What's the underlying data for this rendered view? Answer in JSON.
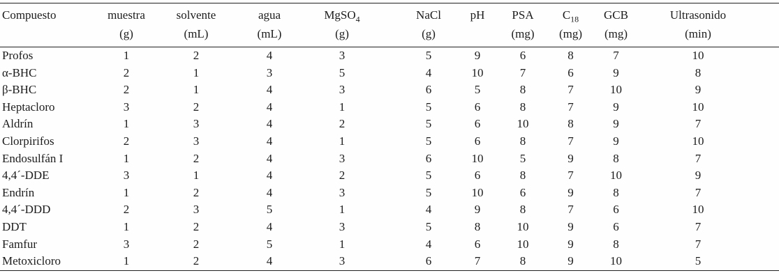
{
  "table": {
    "columns": [
      {
        "main": "Compuesto",
        "sub": "",
        "unit": ""
      },
      {
        "main": "muestra",
        "sub": "",
        "unit": "(g)"
      },
      {
        "main": "solvente",
        "sub": "",
        "unit": "(mL)"
      },
      {
        "main": "agua",
        "sub": "",
        "unit": "(mL)"
      },
      {
        "main": "MgSO",
        "sub": "4",
        "unit": "(g)"
      },
      {
        "main": "NaCl",
        "sub": "",
        "unit": "(g)"
      },
      {
        "main": "pH",
        "sub": "",
        "unit": ""
      },
      {
        "main": "PSA",
        "sub": "",
        "unit": "(mg)"
      },
      {
        "main": "C",
        "sub": "18",
        "unit": "(mg)"
      },
      {
        "main": "GCB",
        "sub": "",
        "unit": "(mg)"
      },
      {
        "main": "Ultrasonido",
        "sub": "",
        "unit": "(min)"
      }
    ],
    "rows": [
      {
        "compound": "Profos",
        "values": [
          1,
          2,
          4,
          3,
          5,
          9,
          6,
          8,
          7,
          10
        ]
      },
      {
        "compound": "α-BHC",
        "values": [
          2,
          1,
          3,
          5,
          4,
          10,
          7,
          6,
          9,
          8
        ]
      },
      {
        "compound": "β-BHC",
        "values": [
          2,
          1,
          4,
          3,
          6,
          5,
          8,
          7,
          10,
          9
        ]
      },
      {
        "compound": "Heptacloro",
        "values": [
          3,
          2,
          4,
          1,
          5,
          6,
          8,
          7,
          9,
          10
        ]
      },
      {
        "compound": "Aldrín",
        "values": [
          1,
          3,
          4,
          2,
          5,
          6,
          10,
          8,
          9,
          7
        ]
      },
      {
        "compound": "Clorpirifos",
        "values": [
          2,
          3,
          4,
          1,
          5,
          6,
          8,
          7,
          9,
          10
        ]
      },
      {
        "compound": "Endosulfán I",
        "values": [
          1,
          2,
          4,
          3,
          6,
          10,
          5,
          9,
          8,
          7
        ]
      },
      {
        "compound": "4,4´-DDE",
        "values": [
          3,
          1,
          4,
          2,
          5,
          6,
          8,
          7,
          10,
          9
        ]
      },
      {
        "compound": "Endrín",
        "values": [
          1,
          2,
          4,
          3,
          5,
          10,
          6,
          9,
          8,
          7
        ]
      },
      {
        "compound": "4,4´-DDD",
        "values": [
          2,
          3,
          5,
          1,
          4,
          9,
          8,
          7,
          6,
          10
        ]
      },
      {
        "compound": "DDT",
        "values": [
          1,
          2,
          4,
          3,
          5,
          8,
          10,
          9,
          6,
          7
        ]
      },
      {
        "compound": "Famfur",
        "values": [
          3,
          2,
          5,
          1,
          4,
          6,
          10,
          9,
          8,
          7
        ]
      },
      {
        "compound": "Metoxicloro",
        "values": [
          1,
          2,
          4,
          3,
          6,
          7,
          8,
          9,
          10,
          5
        ]
      }
    ]
  }
}
